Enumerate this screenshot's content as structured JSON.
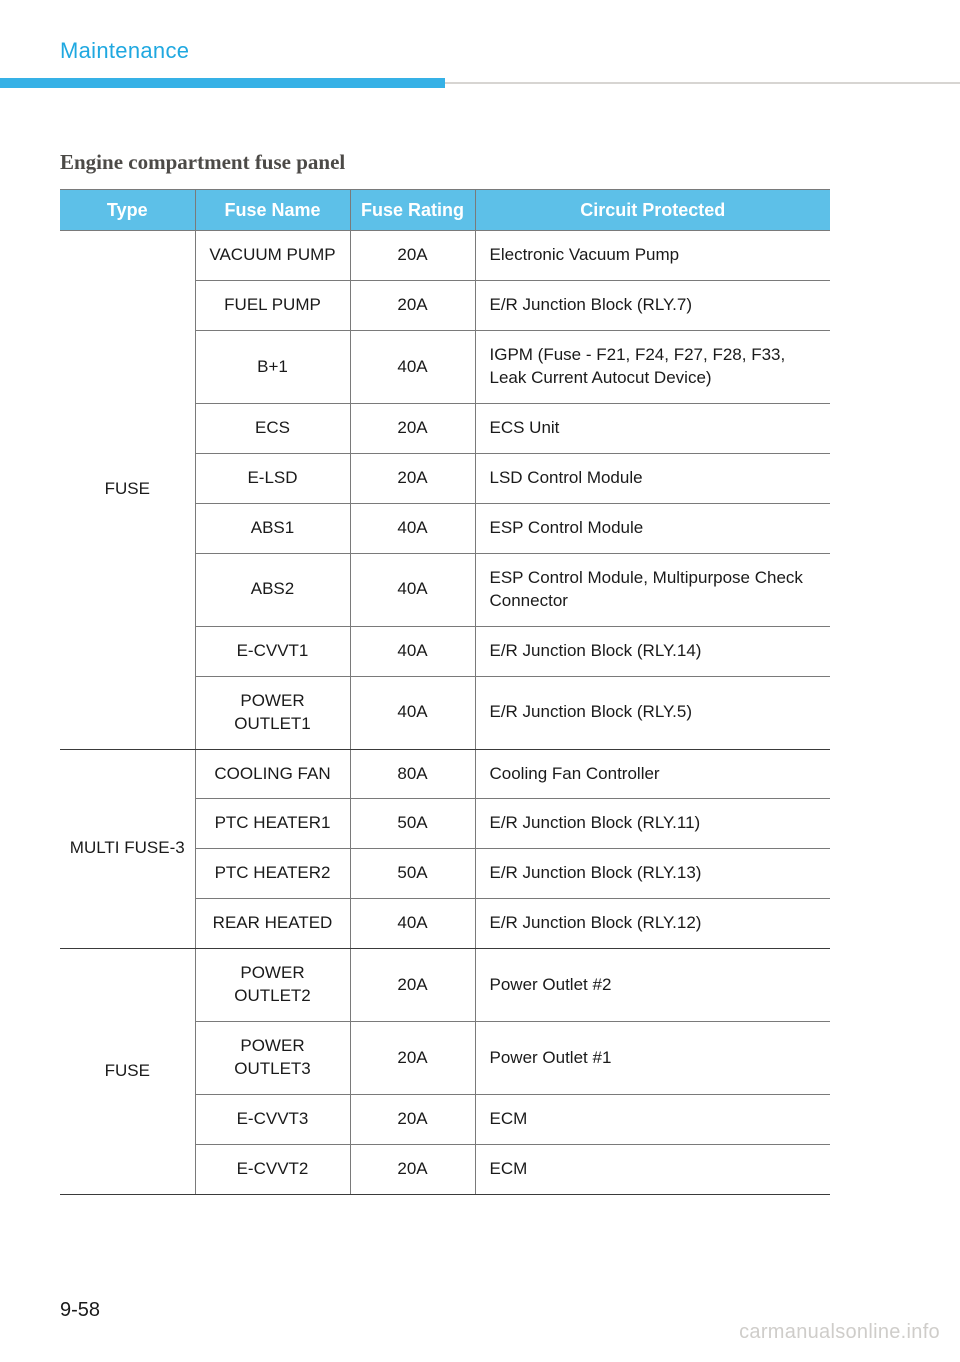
{
  "colors": {
    "accent_text": "#1fa8e0",
    "header_bg": "#5dc0e8",
    "header_fg": "#ffffff",
    "rule_blue": "#36b1e6",
    "rule_grey": "#d7d5d2",
    "cell_border": "#7a7a7a",
    "watermark": "#cfcdca",
    "body_text": "#1a1a1a",
    "section_title": "#4c4a47"
  },
  "page": {
    "header": "Maintenance",
    "section_title": "Engine compartment fuse panel",
    "number": "9-58",
    "watermark": "carmanualsonline.info"
  },
  "table": {
    "columns": {
      "type": "Type",
      "name": "Fuse Name",
      "rating": "Fuse Rating",
      "circuit": "Circuit Protected"
    },
    "groups": [
      {
        "type": "FUSE",
        "rows": [
          {
            "name": "VACUUM PUMP",
            "rating": "20A",
            "circuit": "Electronic Vacuum Pump"
          },
          {
            "name": "FUEL PUMP",
            "rating": "20A",
            "circuit": "E/R Junction Block (RLY.7)"
          },
          {
            "name": "B+1",
            "rating": "40A",
            "circuit": "IGPM (Fuse - F21, F24, F27, F28, F33, Leak Current Autocut Device)"
          },
          {
            "name": "ECS",
            "rating": "20A",
            "circuit": "ECS Unit"
          },
          {
            "name": "E-LSD",
            "rating": "20A",
            "circuit": "LSD Control Module"
          },
          {
            "name": "ABS1",
            "rating": "40A",
            "circuit": "ESP Control Module"
          },
          {
            "name": "ABS2",
            "rating": "40A",
            "circuit": "ESP Control Module, Multipurpose Check Connector"
          },
          {
            "name": "E-CVVT1",
            "rating": "40A",
            "circuit": "E/R Junction Block (RLY.14)"
          },
          {
            "name": "POWER OUTLET1",
            "rating": "40A",
            "circuit": "E/R Junction Block (RLY.5)"
          }
        ]
      },
      {
        "type": "MULTI FUSE-3",
        "rows": [
          {
            "name": "COOLING FAN",
            "rating": "80A",
            "circuit": "Cooling Fan Controller"
          },
          {
            "name": "PTC HEATER1",
            "rating": "50A",
            "circuit": "E/R Junction Block (RLY.11)"
          },
          {
            "name": "PTC HEATER2",
            "rating": "50A",
            "circuit": "E/R Junction Block (RLY.13)"
          },
          {
            "name": "REAR HEATED",
            "rating": "40A",
            "circuit": "E/R Junction Block (RLY.12)"
          }
        ]
      },
      {
        "type": "FUSE",
        "rows": [
          {
            "name": "POWER OUTLET2",
            "rating": "20A",
            "circuit": "Power Outlet #2"
          },
          {
            "name": "POWER OUTLET3",
            "rating": "20A",
            "circuit": "Power Outlet #1"
          },
          {
            "name": "E-CVVT3",
            "rating": "20A",
            "circuit": "ECM"
          },
          {
            "name": "E-CVVT2",
            "rating": "20A",
            "circuit": "ECM"
          }
        ]
      }
    ]
  }
}
